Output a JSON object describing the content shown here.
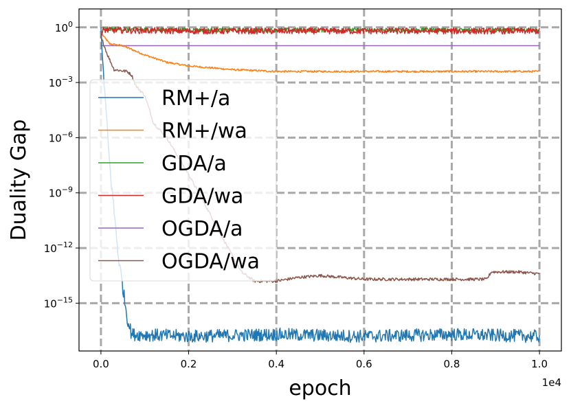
{
  "chart_data": {
    "type": "line",
    "title": "",
    "xlabel": "epoch",
    "ylabel": "Duality Gap",
    "x_scale_note": "1e4",
    "xlim": [
      -0.05,
      1.05
    ],
    "y_log10_lim": [
      -17.6,
      1.0
    ],
    "x_ticks": [
      {
        "value": 0.0,
        "label": "0.0"
      },
      {
        "value": 0.2,
        "label": "0.2"
      },
      {
        "value": 0.4,
        "label": "0.4"
      },
      {
        "value": 0.6,
        "label": "0.6"
      },
      {
        "value": 0.8,
        "label": "0.8"
      },
      {
        "value": 1.0,
        "label": "1.0"
      }
    ],
    "y_ticks": [
      {
        "exp": 0,
        "base": "10",
        "sup": "0"
      },
      {
        "exp": -3,
        "base": "10",
        "sup": "−3"
      },
      {
        "exp": -6,
        "base": "10",
        "sup": "−6"
      },
      {
        "exp": -9,
        "base": "10",
        "sup": "−9"
      },
      {
        "exp": -12,
        "base": "10",
        "sup": "−12"
      },
      {
        "exp": -15,
        "base": "10",
        "sup": "−15"
      }
    ],
    "grid": true,
    "legend_position": "center-left",
    "series": [
      {
        "name": "RM+/a",
        "color": "#1f77b4",
        "noise": 0.35,
        "points": [
          [
            0.0,
            0.0
          ],
          [
            0.003,
            -1.5
          ],
          [
            0.01,
            -4.0
          ],
          [
            0.02,
            -7.5
          ],
          [
            0.04,
            -12.5
          ],
          [
            0.06,
            -15.8
          ],
          [
            0.07,
            -16.7
          ],
          [
            0.08,
            -16.7
          ],
          [
            0.2,
            -16.8
          ],
          [
            0.4,
            -16.7
          ],
          [
            0.6,
            -16.8
          ],
          [
            0.8,
            -16.7
          ],
          [
            1.0,
            -16.8
          ]
        ]
      },
      {
        "name": "RM+/wa",
        "color": "#ff7f0e",
        "noise": 0.05,
        "points": [
          [
            0.0,
            -0.3
          ],
          [
            0.02,
            -0.9
          ],
          [
            0.05,
            -1.0
          ],
          [
            0.08,
            -1.3
          ],
          [
            0.1,
            -1.5
          ],
          [
            0.15,
            -1.9
          ],
          [
            0.2,
            -2.1
          ],
          [
            0.3,
            -2.3
          ],
          [
            0.4,
            -2.4
          ],
          [
            0.6,
            -2.4
          ],
          [
            0.8,
            -2.4
          ],
          [
            1.0,
            -2.4
          ]
        ]
      },
      {
        "name": "GDA/a",
        "color": "#2ca02c",
        "noise": 0.12,
        "points": [
          [
            0.0,
            -0.5
          ],
          [
            0.005,
            -0.1
          ],
          [
            0.2,
            -0.15
          ],
          [
            0.4,
            -0.15
          ],
          [
            0.6,
            -0.15
          ],
          [
            0.8,
            -0.15
          ],
          [
            1.0,
            -0.15
          ]
        ]
      },
      {
        "name": "GDA/wa",
        "color": "#d62728",
        "noise": 0.17,
        "points": [
          [
            0.0,
            -0.6
          ],
          [
            0.005,
            -0.15
          ],
          [
            0.2,
            -0.2
          ],
          [
            0.4,
            -0.2
          ],
          [
            0.6,
            -0.2
          ],
          [
            0.8,
            -0.2
          ],
          [
            1.0,
            -0.2
          ]
        ]
      },
      {
        "name": "OGDA/a",
        "color": "#9467bd",
        "noise": 0.0,
        "points": [
          [
            0.0,
            -1.0
          ],
          [
            1.0,
            -1.0
          ]
        ]
      },
      {
        "name": "OGDA/wa",
        "color": "#8c564b",
        "noise": 0.08,
        "points": [
          [
            0.0,
            -0.5
          ],
          [
            0.015,
            -1.5
          ],
          [
            0.03,
            -2.3
          ],
          [
            0.06,
            -2.4
          ],
          [
            0.07,
            -2.6
          ],
          [
            0.08,
            -3.2
          ],
          [
            0.1,
            -3.7
          ],
          [
            0.12,
            -5.2
          ],
          [
            0.15,
            -6.0
          ],
          [
            0.2,
            -8.0
          ],
          [
            0.25,
            -10.2
          ],
          [
            0.29,
            -12.0
          ],
          [
            0.32,
            -13.3
          ],
          [
            0.35,
            -13.8
          ],
          [
            0.4,
            -13.8
          ],
          [
            0.45,
            -13.6
          ],
          [
            0.5,
            -13.5
          ],
          [
            0.55,
            -13.6
          ],
          [
            0.6,
            -13.7
          ],
          [
            0.7,
            -13.7
          ],
          [
            0.8,
            -13.7
          ],
          [
            0.88,
            -13.7
          ],
          [
            0.89,
            -13.3
          ],
          [
            0.95,
            -13.3
          ],
          [
            1.0,
            -13.4
          ]
        ]
      }
    ]
  }
}
